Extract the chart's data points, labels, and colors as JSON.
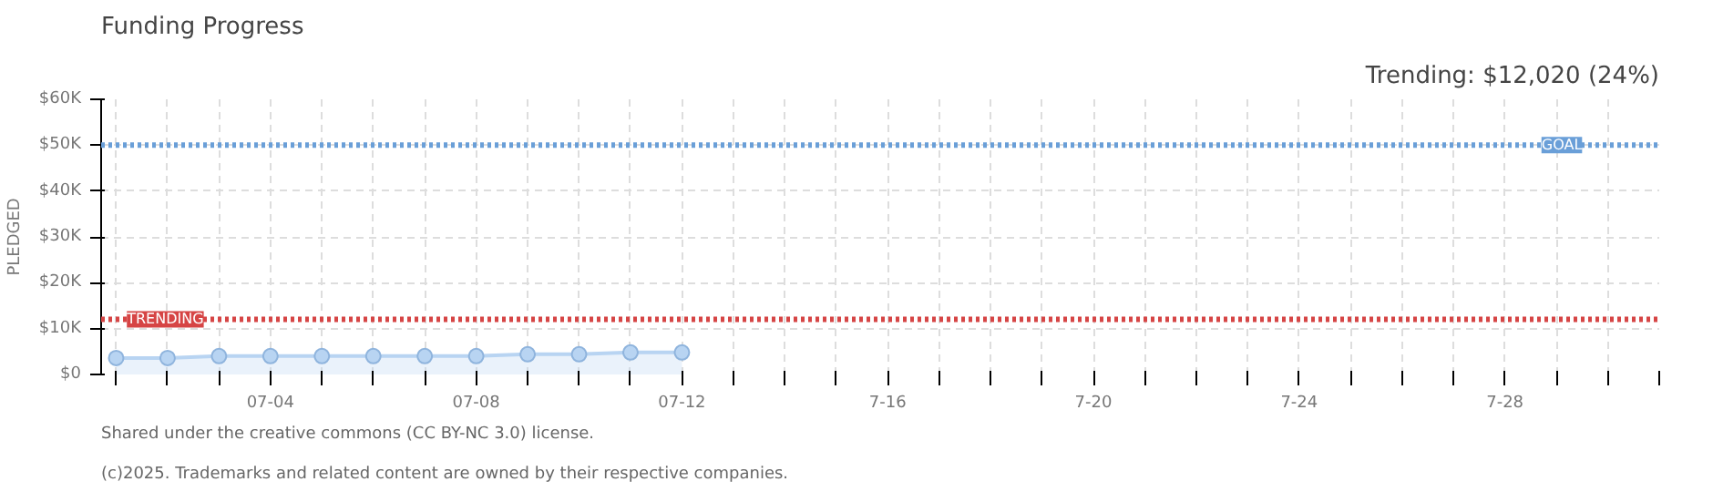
{
  "chart_data": {
    "type": "area",
    "title": "Funding Progress",
    "subtitle": "Trending: $12,020 (24%)",
    "ylabel": "PLEDGED",
    "x": [
      "2025-07-01",
      "2025-07-02",
      "2025-07-03",
      "2025-07-04",
      "2025-07-05",
      "2025-07-06",
      "2025-07-07",
      "2025-07-08",
      "2025-07-09",
      "2025-07-10",
      "2025-07-11",
      "2025-07-12"
    ],
    "series": [
      {
        "color": "#b8d4f2",
        "values": [
          3600,
          3600,
          4000,
          4000,
          4000,
          4000,
          4000,
          4000,
          4400,
          4400,
          4800,
          4800
        ]
      }
    ],
    "marker": "circle",
    "grid": true,
    "xlim": [
      "2025-06-30T17:00",
      "2025-07-31"
    ],
    "xticks": [
      {
        "value": "2025-07-01",
        "label": null
      },
      {
        "value": "2025-07-02",
        "label": null
      },
      {
        "value": "2025-07-03",
        "label": null
      },
      {
        "value": "2025-07-04",
        "label": "07-04"
      },
      {
        "value": "2025-07-05",
        "label": null
      },
      {
        "value": "2025-07-06",
        "label": null
      },
      {
        "value": "2025-07-07",
        "label": null
      },
      {
        "value": "2025-07-08",
        "label": "07-08"
      },
      {
        "value": "2025-07-09",
        "label": null
      },
      {
        "value": "2025-07-10",
        "label": null
      },
      {
        "value": "2025-07-11",
        "label": null
      },
      {
        "value": "2025-07-12",
        "label": "07-12"
      },
      {
        "value": "2025-07-13",
        "label": null
      },
      {
        "value": "2025-07-14",
        "label": null
      },
      {
        "value": "2025-07-15",
        "label": null
      },
      {
        "value": "2025-07-16",
        "label": "7-16"
      },
      {
        "value": "2025-07-17",
        "label": null
      },
      {
        "value": "2025-07-18",
        "label": null
      },
      {
        "value": "2025-07-19",
        "label": null
      },
      {
        "value": "2025-07-20",
        "label": "7-20"
      },
      {
        "value": "2025-07-21",
        "label": null
      },
      {
        "value": "2025-07-22",
        "label": null
      },
      {
        "value": "2025-07-23",
        "label": null
      },
      {
        "value": "2025-07-24",
        "label": "7-24"
      },
      {
        "value": "2025-07-25",
        "label": null
      },
      {
        "value": "2025-07-26",
        "label": null
      },
      {
        "value": "2025-07-27",
        "label": null
      },
      {
        "value": "2025-07-28",
        "label": "7-28"
      },
      {
        "value": "2025-07-29",
        "label": null
      },
      {
        "value": "2025-07-30",
        "label": null
      },
      {
        "value": "2025-07-31",
        "label": null
      }
    ],
    "ylim": [
      0,
      60000
    ],
    "yticks": [
      {
        "value": 0,
        "label": "$0"
      },
      {
        "value": 10000,
        "label": "$10K"
      },
      {
        "value": 20000,
        "label": "$20K"
      },
      {
        "value": 30000,
        "label": "$30K"
      },
      {
        "value": 40000,
        "label": "$40K"
      },
      {
        "value": 50000,
        "label": "$50K"
      },
      {
        "value": 60000,
        "label": "$60K"
      }
    ],
    "ref_lines": [
      {
        "axis": "y",
        "value": 50000,
        "label": "GOAL",
        "color": "#6a9fd8",
        "line_style": "dotted"
      },
      {
        "axis": "y",
        "value": 12020,
        "label": "TRENDING",
        "color": "#d64545",
        "line_style": "dotted"
      }
    ],
    "annotations": [
      "(c)2025. Trademarks and related content are owned by their respective companies.",
      "Shared under the creative commons (CC BY-NC 3.0) license."
    ]
  }
}
